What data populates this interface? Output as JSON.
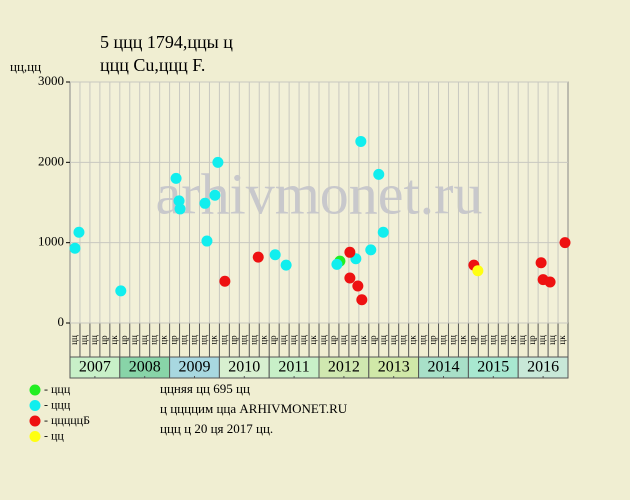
{
  "chart_data": {
    "type": "scatter",
    "title": "5 ццц 1794,ццы ц",
    "subtitle": "ццц Cu,ццц F.",
    "y_label": "цц,цц",
    "watermark": "arhivmonet.ru",
    "xlim": [
      2007,
      2017
    ],
    "ylim": [
      0,
      3000
    ],
    "yticks": [
      0,
      1000,
      2000,
      3000
    ],
    "xticks": [
      {
        "value": 2007.5,
        "label": "2007"
      },
      {
        "value": 2008.5,
        "label": "2008"
      },
      {
        "value": 2009.5,
        "label": "2009"
      },
      {
        "value": 2010.5,
        "label": "2010"
      },
      {
        "value": 2011.5,
        "label": "2011"
      },
      {
        "value": 2012.5,
        "label": "2012"
      },
      {
        "value": 2013.5,
        "label": "2013"
      },
      {
        "value": 2014.5,
        "label": "2014"
      },
      {
        "value": 2015.5,
        "label": "2015"
      },
      {
        "value": 2016.5,
        "label": "2016"
      }
    ],
    "year_colors": [
      "#c8f0c8",
      "#88d4a8",
      "#a8d8e0",
      "#d8f0d0",
      "#c8f0c8",
      "#d0e8b0",
      "#d0e8a8",
      "#a8e0c8",
      "#a8e8d0",
      "#c8e8d8"
    ],
    "column_labels": [
      "цц",
      "цц",
      "цц",
      "цр",
      "цк",
      "цр",
      "цц",
      "цц",
      "цц",
      "цк",
      "цр",
      "цц",
      "цц",
      "цц",
      "цк",
      "цц",
      "цр",
      "цц",
      "цц",
      "цк",
      "цр",
      "цц",
      "цц",
      "цц",
      "цк",
      "цц",
      "цр",
      "цц",
      "цц",
      "цк",
      "цр",
      "цц",
      "цц",
      "цц",
      "цк",
      "цц",
      "цр",
      "цц",
      "цц",
      "цк",
      "цр",
      "цц",
      "цц",
      "цц",
      "цк",
      "цц",
      "цр",
      "цц",
      "цц",
      "цк"
    ],
    "grid": true,
    "series": [
      {
        "name": "- ццц",
        "color": "#22ee22",
        "x": [
          2012.42
        ],
        "values": [
          770
        ]
      },
      {
        "name": "- ццц",
        "color": "#11eeee",
        "x": [
          2007.1,
          2007.18,
          2008.02,
          2009.13,
          2009.19,
          2009.21,
          2009.75,
          2009.71,
          2009.91,
          2009.97,
          2011.12,
          2011.34,
          2012.36,
          2012.74,
          2012.84,
          2013.04,
          2013.2,
          2013.29
        ],
        "values": [
          930,
          1130,
          400,
          1800,
          1520,
          1420,
          1020,
          1490,
          1590,
          2000,
          850,
          720,
          730,
          800,
          2260,
          910,
          1850,
          1130
        ]
      },
      {
        "name": "- цццццБ",
        "color": "#ee1111",
        "x": [
          2010.11,
          2010.78,
          2012.62,
          2012.62,
          2012.78,
          2012.86,
          2015.11,
          2016.46,
          2016.5,
          2016.64,
          2016.94
        ],
        "values": [
          520,
          820,
          880,
          560,
          460,
          290,
          720,
          750,
          540,
          510,
          1000
        ]
      },
      {
        "name": "- цц",
        "color": "#ffff11",
        "x": [
          2015.19
        ],
        "values": [
          650
        ]
      }
    ],
    "notes": [
      "ццняя цц 695 цц",
      "ц ццццим цца ARHIVMONET.RU",
      "ццц ц 20 ця 2017 цц."
    ]
  }
}
